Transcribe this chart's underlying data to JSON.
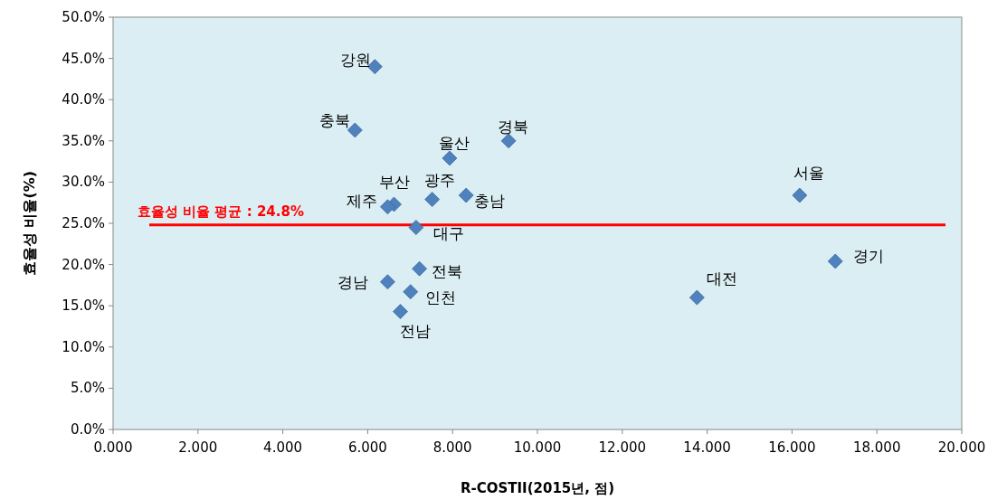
{
  "chart_data": {
    "type": "scatter",
    "xlabel": "R-COSTII(2015년, 점)",
    "ylabel": "효율성 비율(%)",
    "x": [
      6.17,
      5.7,
      9.32,
      7.93,
      16.18,
      6.62,
      7.52,
      6.47,
      8.32,
      7.14,
      17.02,
      7.22,
      6.47,
      7.01,
      13.76,
      6.77
    ],
    "values": [
      44.0,
      36.3,
      35.0,
      32.9,
      28.4,
      27.3,
      27.9,
      27.0,
      28.4,
      24.5,
      20.4,
      19.5,
      17.9,
      16.7,
      16.0,
      14.3
    ],
    "color": "#4f81bd",
    "marker": "diamond",
    "xlim": [
      0,
      20
    ],
    "ylim": [
      0,
      50
    ],
    "xticks": [
      {
        "value": 0,
        "label": "0.000"
      },
      {
        "value": 2,
        "label": "2.000"
      },
      {
        "value": 4,
        "label": "4.000"
      },
      {
        "value": 6,
        "label": "6.000"
      },
      {
        "value": 8,
        "label": "8.000"
      },
      {
        "value": 10,
        "label": "10.000"
      },
      {
        "value": 12,
        "label": "12.000"
      },
      {
        "value": 14,
        "label": "14.000"
      },
      {
        "value": 16,
        "label": "16.000"
      },
      {
        "value": 18,
        "label": "18.000"
      },
      {
        "value": 20,
        "label": "20.000"
      }
    ],
    "yticks": [
      {
        "value": 0,
        "label": "0.0%"
      },
      {
        "value": 5,
        "label": "5.0%"
      },
      {
        "value": 10,
        "label": "10.0%"
      },
      {
        "value": 15,
        "label": "15.0%"
      },
      {
        "value": 20,
        "label": "20.0%"
      },
      {
        "value": 25,
        "label": "25.0%"
      },
      {
        "value": 30,
        "label": "30.0%"
      },
      {
        "value": 35,
        "label": "35.0%"
      },
      {
        "value": 40,
        "label": "40.0%"
      },
      {
        "value": 45,
        "label": "45.0%"
      },
      {
        "value": 50,
        "label": "50.0%"
      }
    ],
    "ref_lines": [
      {
        "axis": "y",
        "value": 24.8,
        "label": "효율성 비율 평균 : 24.8%",
        "color": "#ff0000"
      }
    ],
    "annotations": [
      {
        "text": "강원",
        "x": 6.17,
        "y": 44.0
      },
      {
        "text": "충북",
        "x": 5.7,
        "y": 36.3
      },
      {
        "text": "경북",
        "x": 9.32,
        "y": 35.0
      },
      {
        "text": "울산",
        "x": 7.93,
        "y": 32.9
      },
      {
        "text": "서울",
        "x": 16.18,
        "y": 28.4
      },
      {
        "text": "부산",
        "x": 6.62,
        "y": 27.3
      },
      {
        "text": "광주",
        "x": 7.52,
        "y": 27.9
      },
      {
        "text": "제주",
        "x": 6.47,
        "y": 27.0
      },
      {
        "text": "충남",
        "x": 8.32,
        "y": 28.4
      },
      {
        "text": "대구",
        "x": 7.14,
        "y": 24.5
      },
      {
        "text": "경기",
        "x": 17.02,
        "y": 20.4
      },
      {
        "text": "전북",
        "x": 7.22,
        "y": 19.5
      },
      {
        "text": "경남",
        "x": 6.47,
        "y": 17.9
      },
      {
        "text": "인천",
        "x": 7.01,
        "y": 16.7
      },
      {
        "text": "대전",
        "x": 13.76,
        "y": 16.0
      },
      {
        "text": "전남",
        "x": 6.77,
        "y": 14.3
      }
    ]
  }
}
